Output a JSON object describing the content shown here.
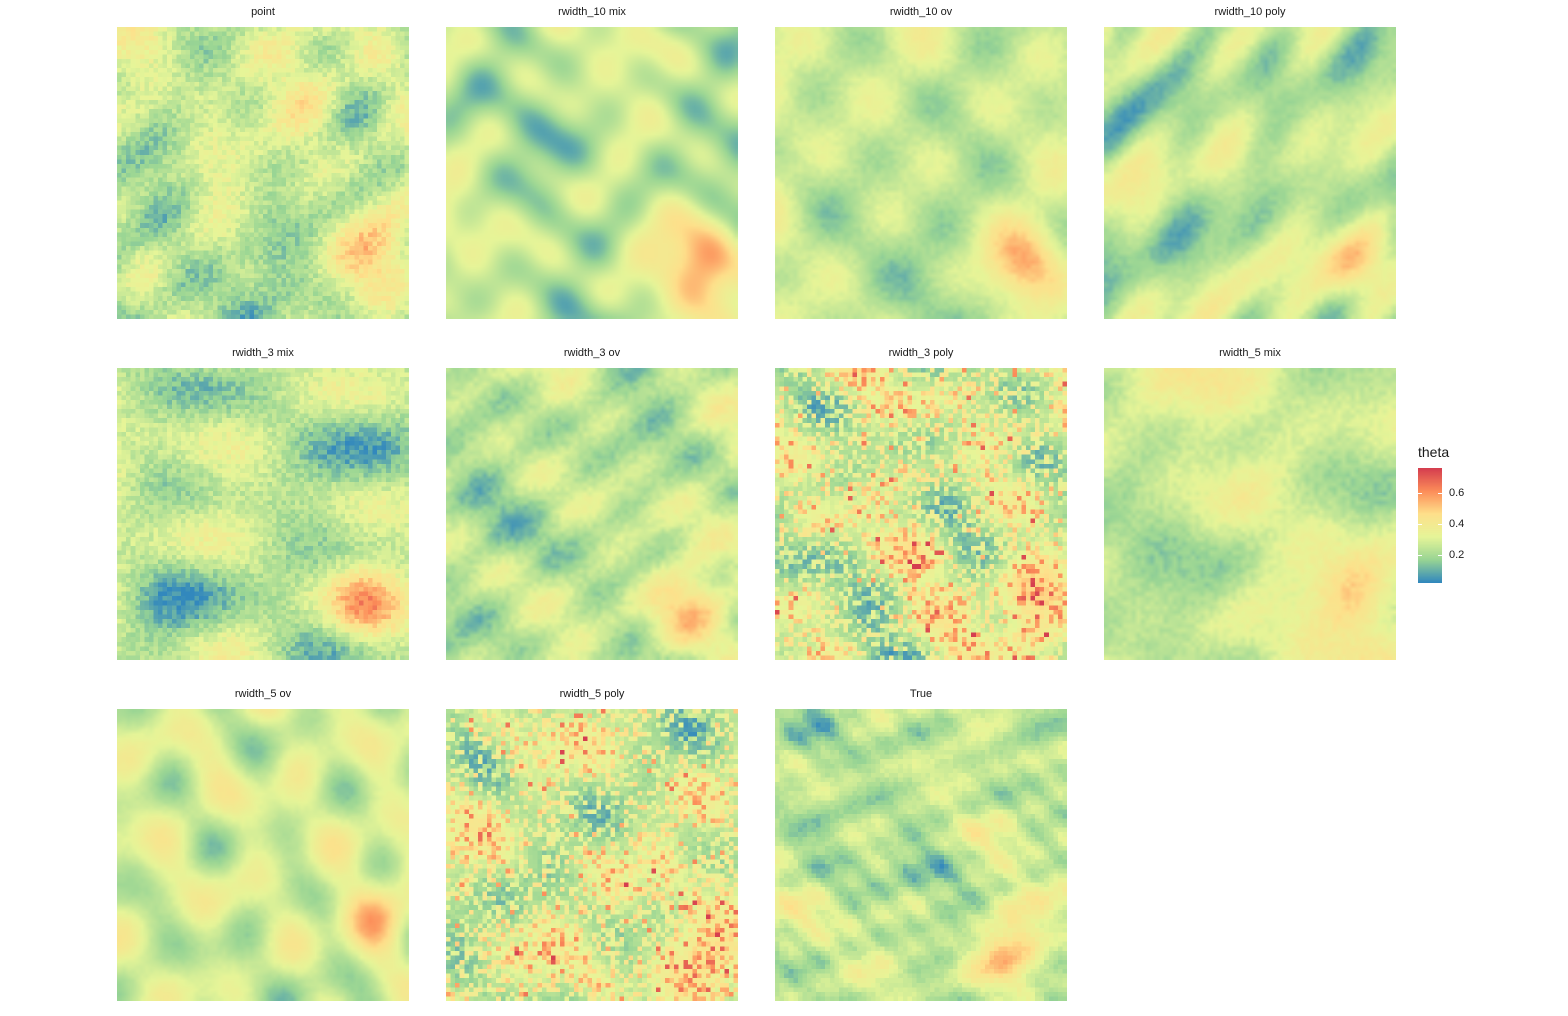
{
  "chart_data": {
    "type": "heatmap",
    "layout": "facet-grid 3 rows x 4 columns",
    "grid_resolution": 64,
    "color_scale": {
      "name": "theta",
      "palette": "Spectral (reversed)",
      "breaks": [
        0.2,
        0.4,
        0.6
      ],
      "break_labels": [
        "0.2",
        "0.4",
        "0.6"
      ],
      "limits": [
        0.02,
        0.76
      ],
      "colors": [
        "#3288bd",
        "#99d594",
        "#e6f598",
        "#fee08b",
        "#fc8d59",
        "#d53e4f"
      ]
    },
    "panels": [
      {
        "title": "point",
        "pattern": "smooth-noisy",
        "seed": 1,
        "smooth": 0.6,
        "noise": 0.05,
        "hotspot": [
          0.82,
          0.78
        ],
        "hot_amp": 0.26
      },
      {
        "title": "rwidth_10 mix",
        "pattern": "smooth",
        "seed": 2,
        "smooth": 1.0,
        "noise": 0.0,
        "hotspot": [
          0.88,
          0.82
        ],
        "hot_amp": 0.34
      },
      {
        "title": "rwidth_10 ov",
        "pattern": "smooth",
        "seed": 3,
        "smooth": 0.75,
        "noise": 0.02,
        "hotspot": [
          0.84,
          0.8
        ],
        "hot_amp": 0.28
      },
      {
        "title": "rwidth_10 poly",
        "pattern": "smooth",
        "seed": 4,
        "smooth": 0.8,
        "noise": 0.02,
        "hotspot": [
          0.8,
          0.78
        ],
        "hot_amp": 0.22
      },
      {
        "title": "rwidth_3 mix",
        "pattern": "smooth-noisy",
        "seed": 5,
        "smooth": 0.65,
        "noise": 0.05,
        "hotspot": [
          0.84,
          0.8
        ],
        "hot_amp": 0.28
      },
      {
        "title": "rwidth_3 ov",
        "pattern": "smooth",
        "seed": 6,
        "smooth": 0.7,
        "noise": 0.03,
        "hotspot": [
          0.82,
          0.8
        ],
        "hot_amp": 0.24
      },
      {
        "title": "rwidth_3 poly",
        "pattern": "speckled",
        "seed": 7,
        "smooth": 0.3,
        "noise": 0.22,
        "hotspot": [
          0.86,
          0.82
        ],
        "hot_amp": 0.3
      },
      {
        "title": "rwidth_5 mix",
        "pattern": "smooth",
        "seed": 8,
        "smooth": 0.7,
        "noise": 0.03,
        "hotspot": [
          0.86,
          0.78
        ],
        "hot_amp": 0.22
      },
      {
        "title": "rwidth_5 ov",
        "pattern": "smooth",
        "seed": 9,
        "smooth": 0.85,
        "noise": 0.01,
        "hotspot": [
          0.88,
          0.7
        ],
        "hot_amp": 0.2
      },
      {
        "title": "rwidth_5 poly",
        "pattern": "speckled",
        "seed": 10,
        "smooth": 0.3,
        "noise": 0.22,
        "hotspot": [
          0.88,
          0.84
        ],
        "hot_amp": 0.3
      },
      {
        "title": "True",
        "pattern": "detailed",
        "seed": 11,
        "smooth": 0.5,
        "noise": 0.02,
        "hotspot": [
          0.8,
          0.8
        ],
        "hot_amp": 0.3
      }
    ]
  }
}
